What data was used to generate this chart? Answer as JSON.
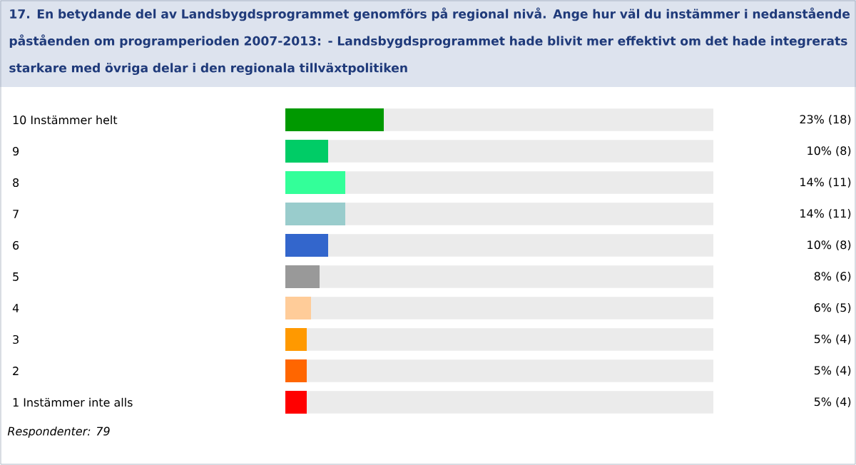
{
  "chart_data": {
    "type": "bar",
    "orientation": "horizontal",
    "title": "17. En betydande del av Landsbygdsprogrammet genomförs på regional nivå. Ange hur väl du instämmer i nedanstående påståenden om programperioden 2007-2013: - Landsbygdsprogrammet hade blivit mer effektivt om det hade integrerats starkare med övriga delar i den regionala tillväxtpolitiken",
    "categories": [
      "10 Instämmer helt",
      "9",
      "8",
      "7",
      "6",
      "5",
      "4",
      "3",
      "2",
      "1 Instämmer inte alls"
    ],
    "values": [
      23,
      10,
      14,
      14,
      10,
      8,
      6,
      5,
      5,
      5
    ],
    "colors": [
      "#009900",
      "#00cc66",
      "#33ff99",
      "#99cccc",
      "#3366cc",
      "#999999",
      "#ffcc99",
      "#ff9900",
      "#ff6600",
      "#ff0000"
    ],
    "value_labels": [
      "23% (18)",
      "10% (8)",
      "14% (11)",
      "14% (11)",
      "10% (8)",
      "8% (6)",
      "6% (5)",
      "5% (4)",
      "5% (4)",
      "5% (4)"
    ],
    "xlim": [
      0,
      100
    ],
    "tick_labels": "y",
    "annotations": [
      "Respondenter: 79"
    ]
  }
}
